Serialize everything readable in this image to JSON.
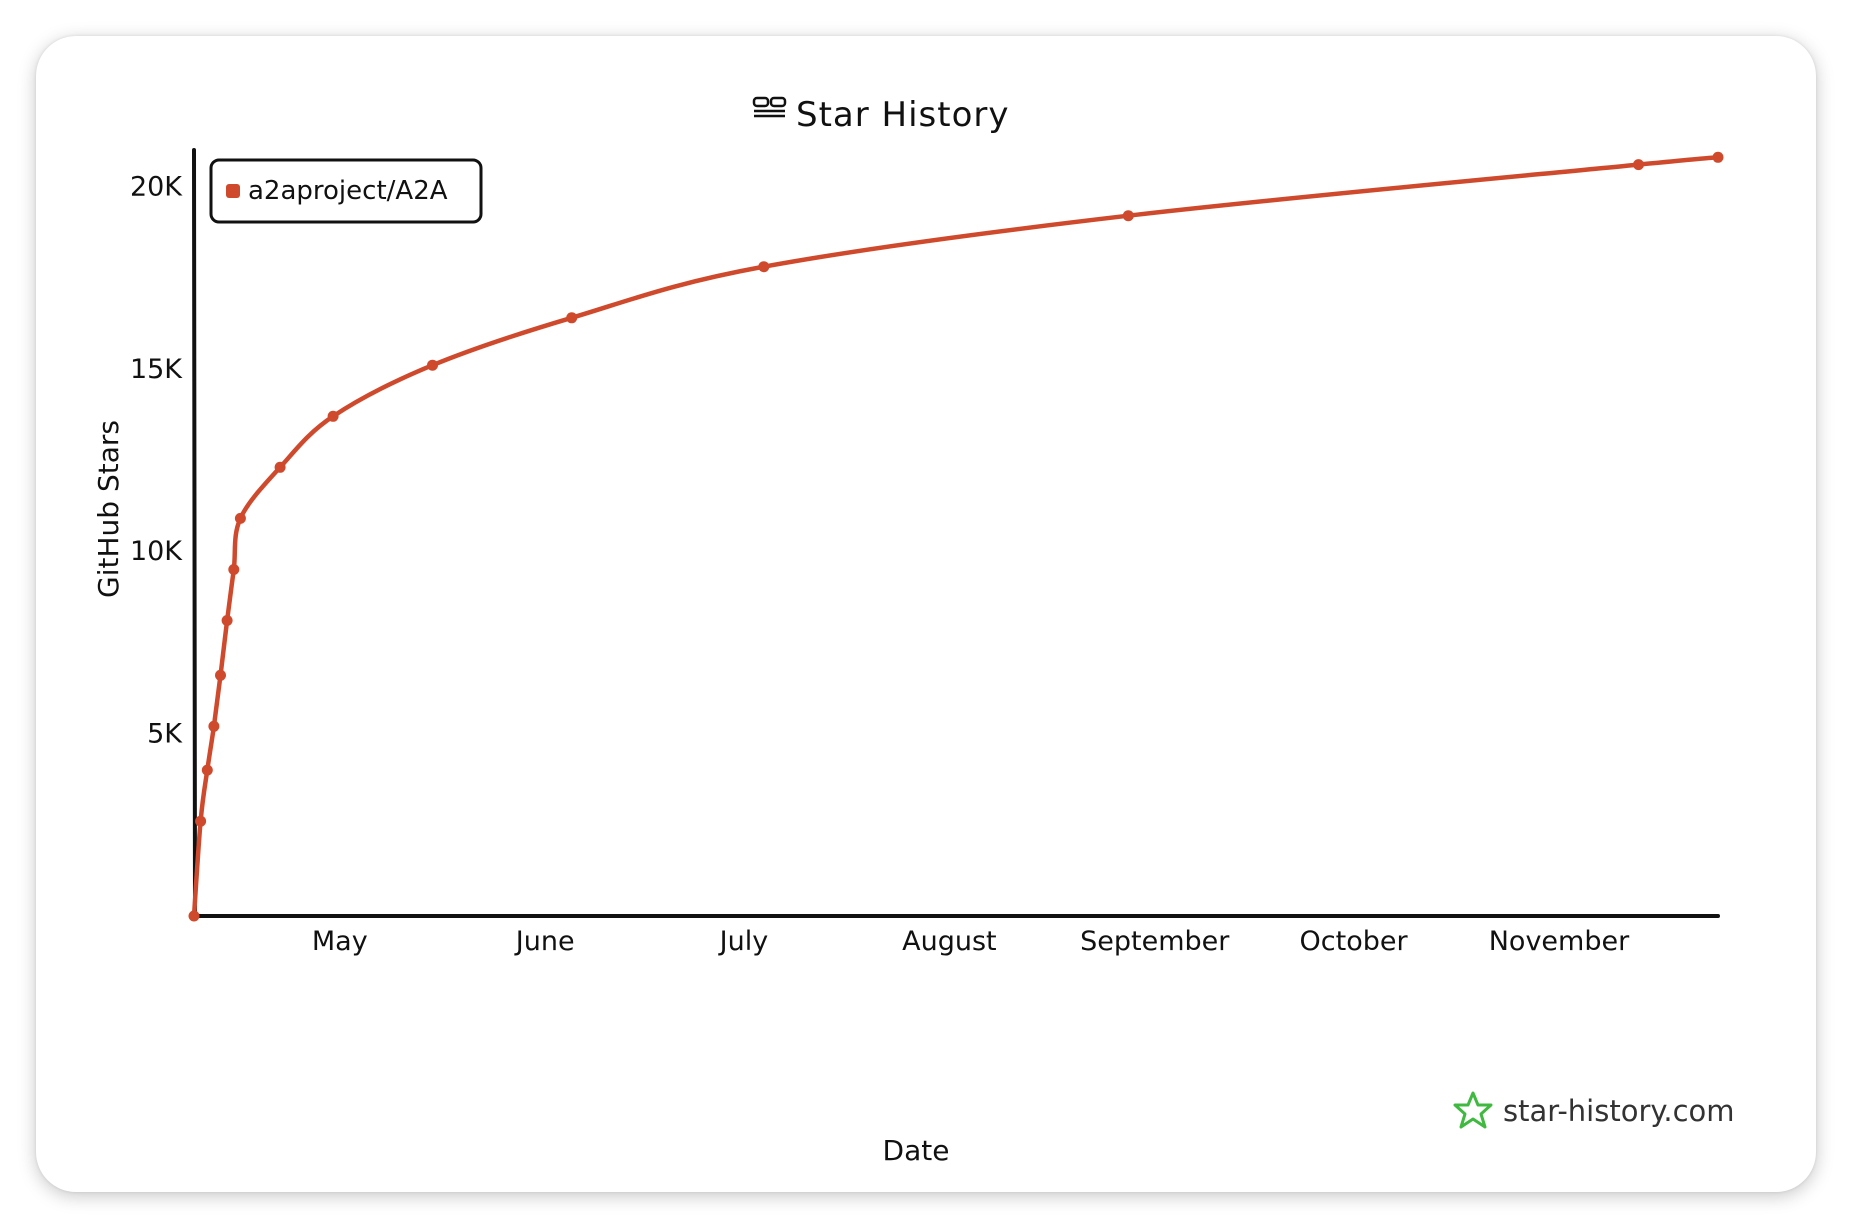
{
  "chart_data": {
    "type": "line",
    "title": "Star History",
    "xlabel": "Date",
    "ylabel": "GitHub Stars",
    "x_ticks": [
      "May",
      "June",
      "July",
      "August",
      "September",
      "October",
      "November"
    ],
    "x_tick_dates": [
      "2025-05-01",
      "2025-06-01",
      "2025-07-01",
      "2025-08-01",
      "2025-09-01",
      "2025-10-01",
      "2025-11-01"
    ],
    "y_ticks": [
      "5K",
      "10K",
      "15K",
      "20K"
    ],
    "y_tick_values": [
      5000,
      10000,
      15000,
      20000
    ],
    "ylim": [
      0,
      21000
    ],
    "xlim": [
      "2025-04-09",
      "2025-11-25"
    ],
    "grid": false,
    "legend_position": "top-left",
    "series": [
      {
        "name": "a2aproject/A2A",
        "color": "#cf4a2c",
        "points": [
          {
            "x": "2025-04-09",
            "y": 0
          },
          {
            "x": "2025-04-10",
            "y": 2600
          },
          {
            "x": "2025-04-11",
            "y": 4000
          },
          {
            "x": "2025-04-12",
            "y": 5200
          },
          {
            "x": "2025-04-13",
            "y": 6600
          },
          {
            "x": "2025-04-14",
            "y": 8100
          },
          {
            "x": "2025-04-15",
            "y": 9500
          },
          {
            "x": "2025-04-16",
            "y": 10900
          },
          {
            "x": "2025-04-22",
            "y": 12300
          },
          {
            "x": "2025-04-30",
            "y": 13700
          },
          {
            "x": "2025-05-15",
            "y": 15100
          },
          {
            "x": "2025-06-05",
            "y": 16400
          },
          {
            "x": "2025-07-04",
            "y": 17800
          },
          {
            "x": "2025-08-28",
            "y": 19200
          },
          {
            "x": "2025-11-13",
            "y": 20600
          },
          {
            "x": "2025-11-25",
            "y": 20800
          }
        ]
      }
    ]
  },
  "watermark": {
    "text": "star-history.com",
    "icon": "star-history-logo-icon",
    "color": "#3fb93f"
  },
  "title_icon": "star-history-mark-icon"
}
